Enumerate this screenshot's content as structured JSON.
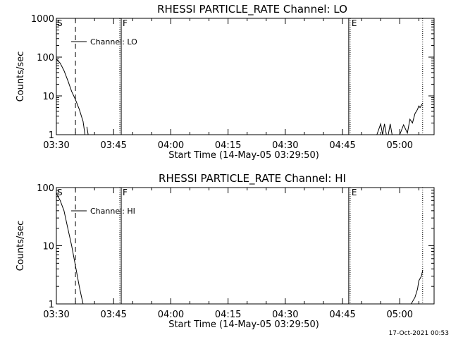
{
  "chart_data": [
    {
      "type": "line",
      "title": "RHESSI PARTICLE_RATE Channel: LO",
      "xlabel": "Start Time (14-May-05 03:29:50)",
      "ylabel": "Counts/sec",
      "scale_y": "log",
      "xlim": [
        "03:30",
        "05:09"
      ],
      "ylim": [
        1,
        1000
      ],
      "x_ticks": [
        "03:30",
        "03:45",
        "04:00",
        "04:15",
        "04:30",
        "04:45",
        "05:00"
      ],
      "y_ticks": [
        "1",
        "10",
        "100",
        "1000"
      ],
      "legend": {
        "entries": [
          "Channel: LO"
        ],
        "placement": "top-left"
      },
      "markers": [
        {
          "label": "S",
          "time": "03:35",
          "style": "dashed"
        },
        {
          "label": "F",
          "time": "03:47",
          "style": "dotted-solid"
        },
        {
          "label": "E",
          "time": "04:47",
          "style": "solid-dotted"
        },
        {
          "label": "",
          "time": "05:06",
          "style": "dotted"
        }
      ],
      "series": [
        {
          "name": "Channel: LO",
          "segments": [
            [
              [
                "03:30",
                90
              ],
              [
                "03:31",
                70
              ],
              [
                "03:32",
                45
              ],
              [
                "03:33",
                25
              ],
              [
                "03:34",
                13
              ],
              [
                "03:35",
                8
              ],
              [
                "03:36",
                4.5
              ],
              [
                "03:37",
                2.2
              ],
              [
                "03:37:30",
                1.0
              ]
            ],
            [
              [
                "03:38",
                1.6
              ],
              [
                "03:38:20",
                1.0
              ]
            ],
            [
              [
                "04:54",
                1.0
              ],
              [
                "04:55",
                1.9
              ],
              [
                "04:55:30",
                1.0
              ],
              [
                "04:56",
                1.9
              ],
              [
                "04:56:30",
                1.0
              ],
              [
                "04:57",
                1.0
              ],
              [
                "04:57:30",
                1.9
              ],
              [
                "04:58",
                1.0
              ]
            ],
            [
              [
                "05:00",
                1.0
              ],
              [
                "05:01",
                1.8
              ],
              [
                "05:02",
                1.1
              ],
              [
                "05:02:40",
                2.5
              ],
              [
                "05:03:20",
                2.0
              ],
              [
                "05:04",
                3.5
              ],
              [
                "05:04:40",
                4.5
              ],
              [
                "05:05",
                5.5
              ],
              [
                "05:05:20",
                5.0
              ],
              [
                "05:06",
                6.5
              ]
            ]
          ]
        }
      ]
    },
    {
      "type": "line",
      "title": "RHESSI PARTICLE_RATE Channel: HI",
      "xlabel": "Start Time (14-May-05 03:29:50)",
      "ylabel": "Counts/sec",
      "scale_y": "log",
      "xlim": [
        "03:30",
        "05:09"
      ],
      "ylim": [
        1,
        100
      ],
      "x_ticks": [
        "03:30",
        "03:45",
        "04:00",
        "04:15",
        "04:30",
        "04:45",
        "05:00"
      ],
      "y_ticks": [
        "1",
        "10",
        "100"
      ],
      "legend": {
        "entries": [
          "Channel: HI"
        ],
        "placement": "top-left"
      },
      "markers": [
        {
          "label": "S",
          "time": "03:35",
          "style": "dashed"
        },
        {
          "label": "F",
          "time": "03:47",
          "style": "dotted-solid"
        },
        {
          "label": "E",
          "time": "04:47",
          "style": "solid-dotted"
        },
        {
          "label": "",
          "time": "05:06",
          "style": "dotted"
        }
      ],
      "series": [
        {
          "name": "Channel: HI",
          "segments": [
            [
              [
                "03:30",
                80
              ],
              [
                "03:31",
                60
              ],
              [
                "03:32",
                40
              ],
              [
                "03:33",
                20
              ],
              [
                "03:34",
                10
              ],
              [
                "03:35",
                4.5
              ],
              [
                "03:36",
                2.0
              ],
              [
                "03:36:30",
                1.4
              ],
              [
                "03:37",
                1.0
              ]
            ],
            [
              [
                "05:03",
                1.0
              ],
              [
                "05:04",
                1.3
              ],
              [
                "05:04:40",
                1.8
              ],
              [
                "05:05",
                2.5
              ],
              [
                "05:05:40",
                3.0
              ],
              [
                "05:06",
                3.8
              ]
            ]
          ]
        }
      ]
    }
  ],
  "footer": {
    "date_stamp": "17-Oct-2021 00:53"
  }
}
